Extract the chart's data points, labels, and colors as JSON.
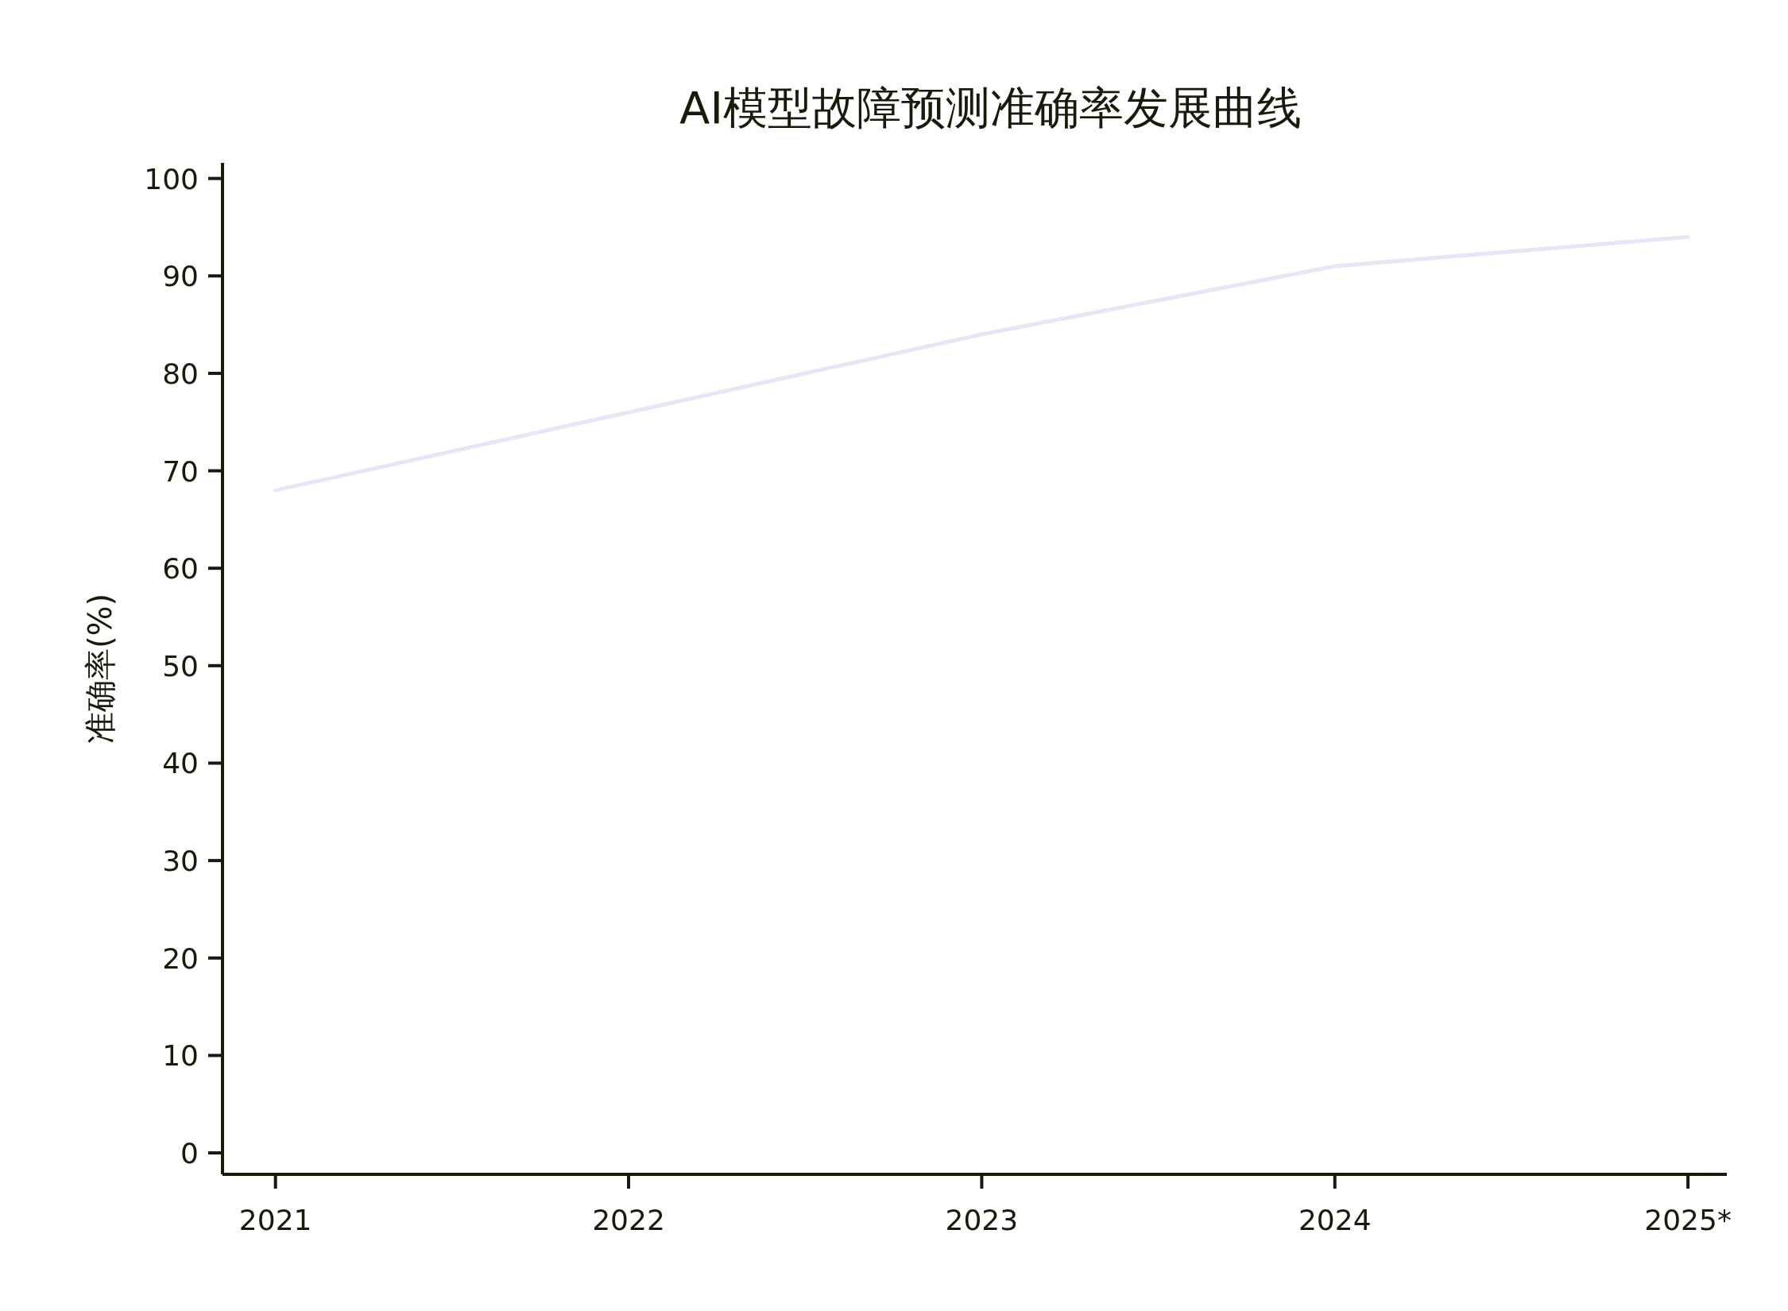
{
  "chart_data": {
    "type": "line",
    "title": "AI模型故障预测准确率发展曲线",
    "ylabel": "准确率(%)",
    "categories": [
      "2021",
      "2022",
      "2023",
      "2024",
      "2025*"
    ],
    "series": [
      {
        "color": "#e6e6fa",
        "values": [
          68,
          76,
          84,
          91,
          94
        ]
      }
    ],
    "ylim": [
      -2.2,
      101.6
    ],
    "yticks": [
      0,
      10,
      20,
      30,
      40,
      50,
      60,
      70,
      80,
      90,
      100
    ]
  }
}
